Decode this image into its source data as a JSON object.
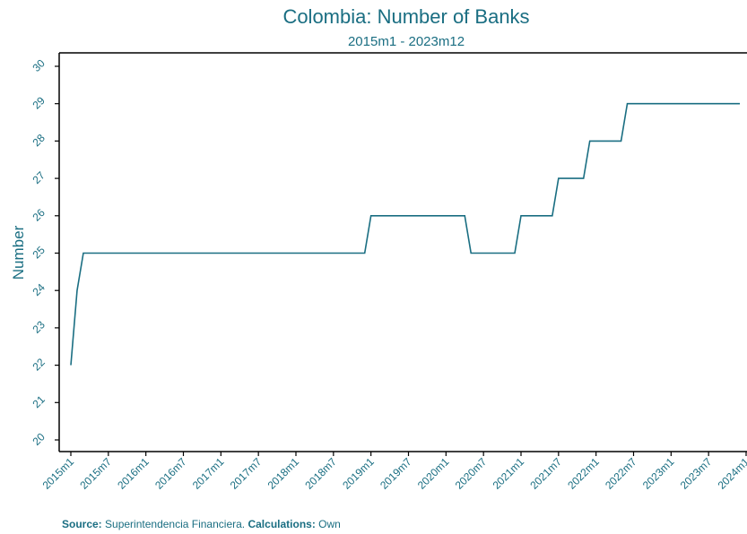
{
  "chart_data": {
    "type": "line",
    "title": "Colombia: Number of Banks",
    "subtitle": "2015m1 - 2023m12",
    "ylabel": "Number",
    "xlabel": "",
    "ylim": [
      20,
      30
    ],
    "yticks": [
      20,
      21,
      22,
      23,
      24,
      25,
      26,
      27,
      28,
      29,
      30
    ],
    "xlim": [
      "2015m1",
      "2024m1"
    ],
    "xtick_labels": [
      "2015m1",
      "2015m7",
      "2016m1",
      "2016m7",
      "2017m1",
      "2017m7",
      "2018m1",
      "2018m7",
      "2019m1",
      "2019m7",
      "2020m1",
      "2020m7",
      "2021m1",
      "2021m7",
      "2022m1",
      "2022m7",
      "2023m1",
      "2023m7",
      "2024m1"
    ],
    "grid": false,
    "series": [
      {
        "color": "#1a6e82",
        "x": [
          "2015m1",
          "2015m2",
          "2015m3",
          "2018m12",
          "2019m1",
          "2020m4",
          "2020m5",
          "2020m12",
          "2021m1",
          "2021m6",
          "2021m7",
          "2021m11",
          "2021m12",
          "2022m5",
          "2022m6",
          "2023m12"
        ],
        "y": [
          22,
          24,
          25,
          25,
          26,
          26,
          25,
          25,
          26,
          26,
          27,
          27,
          28,
          28,
          29,
          29
        ]
      }
    ]
  },
  "source": {
    "source_label": "Source:",
    "source_text": " Superintendencia Financiera. ",
    "calc_label": "Calculations:",
    "calc_text": " Own"
  }
}
